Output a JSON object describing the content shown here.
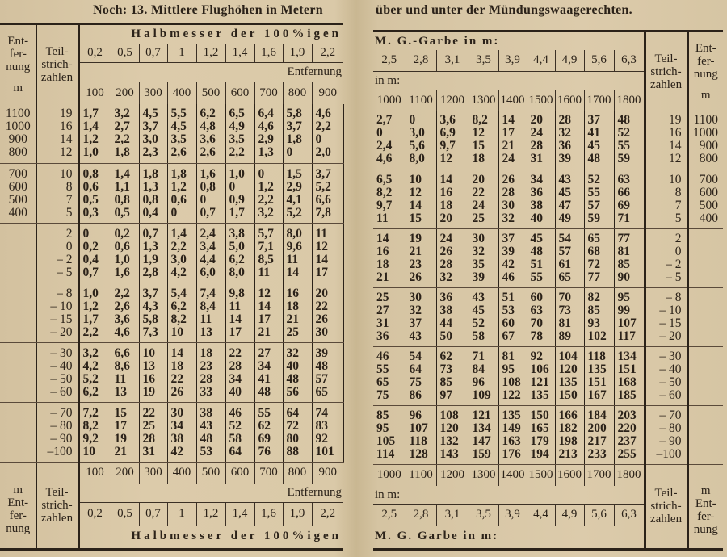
{
  "left": {
    "title": "Noch: 13. Mittlere Flughöhen in Metern",
    "header": {
      "entfernung_label": "Ent-\nfer-\nnung",
      "unit": "m",
      "teil_label": "Teil-\nstrich-\nzahlen",
      "halbmesser_label": "Halbmesser der 100%igen",
      "halbmesser": [
        "0,2",
        "0,5",
        "0,7",
        "1",
        "1,2",
        "1,4",
        "1,6",
        "1,9",
        "2,2"
      ],
      "entfernung_label2": "Entfernung",
      "entfernungen": [
        "100",
        "200",
        "300",
        "400",
        "500",
        "600",
        "700",
        "800",
        "900"
      ]
    },
    "groups": [
      {
        "entfernung": [
          "1100",
          "1000",
          "900",
          "800"
        ],
        "teil": [
          "19",
          "16",
          "14",
          "12"
        ],
        "rows": [
          [
            "1,7",
            "3,2",
            "4,5",
            "5,5",
            "6,2",
            "6,5",
            "6,4",
            "5,8",
            "4,6"
          ],
          [
            "1,4",
            "2,7",
            "3,7",
            "4,5",
            "4,8",
            "4,9",
            "4,6",
            "3,7",
            "2,2"
          ],
          [
            "1,2",
            "2,2",
            "3,0",
            "3,5",
            "3,6",
            "3,5",
            "2,9",
            "1,8",
            "0"
          ],
          [
            "1,0",
            "1,8",
            "2,3",
            "2,6",
            "2,6",
            "2,2",
            "1,3",
            "0",
            "2,0"
          ]
        ]
      },
      {
        "entfernung": [
          "700",
          "600",
          "500",
          "400"
        ],
        "teil": [
          "10",
          "8",
          "7",
          "5"
        ],
        "rows": [
          [
            "0,8",
            "1,4",
            "1,8",
            "1,8",
            "1,6",
            "1,0",
            "0",
            "1,5",
            "3,7"
          ],
          [
            "0,6",
            "1,1",
            "1,3",
            "1,2",
            "0,8",
            "0",
            "1,2",
            "2,9",
            "5,2"
          ],
          [
            "0,5",
            "0,8",
            "0,8",
            "0,6",
            "0",
            "0,9",
            "2,2",
            "4,1",
            "6,6"
          ],
          [
            "0,3",
            "0,5",
            "0,4",
            "0",
            "0,7",
            "1,7",
            "3,2",
            "5,2",
            "7,8"
          ]
        ]
      },
      {
        "entfernung": [
          "",
          "",
          "",
          ""
        ],
        "teil": [
          "2",
          "0",
          "– 2",
          "– 5"
        ],
        "rows": [
          [
            "0",
            "0,2",
            "0,7",
            "1,4",
            "2,4",
            "3,8",
            "5,7",
            "8,0",
            "11"
          ],
          [
            "0,2",
            "0,6",
            "1,3",
            "2,2",
            "3,4",
            "5,0",
            "7,1",
            "9,6",
            "12"
          ],
          [
            "0,4",
            "1,0",
            "1,9",
            "3,0",
            "4,4",
            "6,2",
            "8,5",
            "11",
            "14"
          ],
          [
            "0,7",
            "1,6",
            "2,8",
            "4,2",
            "6,0",
            "8,0",
            "11",
            "14",
            "17"
          ]
        ]
      },
      {
        "entfernung": [
          "",
          "",
          "",
          ""
        ],
        "teil": [
          "– 8",
          "– 10",
          "– 15",
          "– 20"
        ],
        "rows": [
          [
            "1,0",
            "2,2",
            "3,7",
            "5,4",
            "7,4",
            "9,8",
            "12",
            "16",
            "20"
          ],
          [
            "1,2",
            "2,6",
            "4,3",
            "6,2",
            "8,4",
            "11",
            "14",
            "18",
            "22"
          ],
          [
            "1,7",
            "3,6",
            "5,8",
            "8,2",
            "11",
            "14",
            "17",
            "21",
            "26"
          ],
          [
            "2,2",
            "4,6",
            "7,3",
            "10",
            "13",
            "17",
            "21",
            "25",
            "30"
          ]
        ]
      },
      {
        "entfernung": [
          "",
          "",
          "",
          ""
        ],
        "teil": [
          "– 30",
          "– 40",
          "– 50",
          "– 60"
        ],
        "rows": [
          [
            "3,2",
            "6,6",
            "10",
            "14",
            "18",
            "22",
            "27",
            "32",
            "39"
          ],
          [
            "4,2",
            "8,6",
            "13",
            "18",
            "23",
            "28",
            "34",
            "40",
            "48"
          ],
          [
            "5,2",
            "11",
            "16",
            "22",
            "28",
            "34",
            "41",
            "48",
            "57"
          ],
          [
            "6,2",
            "13",
            "19",
            "26",
            "33",
            "40",
            "48",
            "56",
            "65"
          ]
        ]
      },
      {
        "entfernung": [
          "",
          "",
          "",
          ""
        ],
        "teil": [
          "– 70",
          "– 80",
          "– 90",
          "–100"
        ],
        "rows": [
          [
            "7,2",
            "15",
            "22",
            "30",
            "38",
            "46",
            "55",
            "64",
            "74"
          ],
          [
            "8,2",
            "17",
            "25",
            "34",
            "43",
            "52",
            "62",
            "72",
            "83"
          ],
          [
            "9,2",
            "19",
            "28",
            "38",
            "48",
            "58",
            "69",
            "80",
            "92"
          ],
          [
            "10",
            "21",
            "31",
            "42",
            "53",
            "64",
            "76",
            "88",
            "101"
          ]
        ]
      }
    ],
    "footer": {
      "unit": "m",
      "entfernung_label": "Ent-\nfer-\nnung",
      "teil_label": "Teil-\nstrich-\nzahlen",
      "entfernungen": [
        "100",
        "200",
        "300",
        "400",
        "500",
        "600",
        "700",
        "800",
        "900"
      ],
      "entfernung_label2": "Entfernung",
      "halbmesser": [
        "0,2",
        "0,5",
        "0,7",
        "1",
        "1,2",
        "1,4",
        "1,6",
        "1,9",
        "2,2"
      ],
      "halbmesser_label": "Halbmesser der 100%igen"
    }
  },
  "right": {
    "title": "über und unter der Mündungswaagerechten.",
    "header": {
      "garbe_label": "M. G.-Garbe in m:",
      "garbe": [
        "2,5",
        "2,8",
        "3,1",
        "3,5",
        "3,9",
        "4,4",
        "4,9",
        "5,6",
        "6,3"
      ],
      "in_m_label": "in m:",
      "entfernungen": [
        "1000",
        "1100",
        "1200",
        "1300",
        "1400",
        "1500",
        "1600",
        "1700",
        "1800"
      ],
      "teil_label": "Teil-\nstrich-\nzahlen",
      "entfernung_label": "Ent-\nfer-\nnung",
      "unit": "m"
    },
    "groups": [
      {
        "teil": [
          "19",
          "16",
          "14",
          "12"
        ],
        "entfernung": [
          "1100",
          "1000",
          "900",
          "800"
        ],
        "rows": [
          [
            "2,7",
            "0",
            "3,6",
            "8,2",
            "14",
            "20",
            "28",
            "37",
            "48"
          ],
          [
            "0",
            "3,0",
            "6,9",
            "12",
            "17",
            "24",
            "32",
            "41",
            "52"
          ],
          [
            "2,4",
            "5,6",
            "9,7",
            "15",
            "21",
            "28",
            "36",
            "45",
            "55"
          ],
          [
            "4,6",
            "8,0",
            "12",
            "18",
            "24",
            "31",
            "39",
            "48",
            "59"
          ]
        ]
      },
      {
        "teil": [
          "10",
          "8",
          "7",
          "5"
        ],
        "entfernung": [
          "700",
          "600",
          "500",
          "400"
        ],
        "rows": [
          [
            "6,5",
            "10",
            "14",
            "20",
            "26",
            "34",
            "43",
            "52",
            "63"
          ],
          [
            "8,2",
            "12",
            "16",
            "22",
            "28",
            "36",
            "45",
            "55",
            "66"
          ],
          [
            "9,7",
            "14",
            "18",
            "24",
            "30",
            "38",
            "47",
            "57",
            "69"
          ],
          [
            "11",
            "15",
            "20",
            "25",
            "32",
            "40",
            "49",
            "59",
            "71"
          ]
        ]
      },
      {
        "teil": [
          "2",
          "0",
          "– 2",
          "– 5"
        ],
        "entfernung": [
          "",
          "",
          "",
          ""
        ],
        "rows": [
          [
            "14",
            "19",
            "24",
            "30",
            "37",
            "45",
            "54",
            "65",
            "77"
          ],
          [
            "16",
            "21",
            "26",
            "32",
            "39",
            "48",
            "57",
            "68",
            "81"
          ],
          [
            "18",
            "23",
            "28",
            "35",
            "42",
            "51",
            "61",
            "72",
            "85"
          ],
          [
            "21",
            "26",
            "32",
            "39",
            "46",
            "55",
            "65",
            "77",
            "90"
          ]
        ]
      },
      {
        "teil": [
          "– 8",
          "– 10",
          "– 15",
          "– 20"
        ],
        "entfernung": [
          "",
          "",
          "",
          ""
        ],
        "rows": [
          [
            "25",
            "30",
            "36",
            "43",
            "51",
            "60",
            "70",
            "82",
            "95"
          ],
          [
            "27",
            "32",
            "38",
            "45",
            "53",
            "63",
            "73",
            "85",
            "99"
          ],
          [
            "31",
            "37",
            "44",
            "52",
            "60",
            "70",
            "81",
            "93",
            "107"
          ],
          [
            "36",
            "43",
            "50",
            "58",
            "67",
            "78",
            "89",
            "102",
            "117"
          ]
        ]
      },
      {
        "teil": [
          "– 30",
          "– 40",
          "– 50",
          "– 60"
        ],
        "entfernung": [
          "",
          "",
          "",
          ""
        ],
        "rows": [
          [
            "46",
            "54",
            "62",
            "71",
            "81",
            "92",
            "104",
            "118",
            "134"
          ],
          [
            "55",
            "64",
            "73",
            "84",
            "95",
            "106",
            "120",
            "135",
            "151"
          ],
          [
            "65",
            "75",
            "85",
            "96",
            "108",
            "121",
            "135",
            "151",
            "168"
          ],
          [
            "75",
            "86",
            "97",
            "109",
            "122",
            "135",
            "150",
            "167",
            "185"
          ]
        ]
      },
      {
        "teil": [
          "– 70",
          "– 80",
          "– 90",
          "–100"
        ],
        "entfernung": [
          "",
          "",
          "",
          ""
        ],
        "rows": [
          [
            "85",
            "96",
            "108",
            "121",
            "135",
            "150",
            "166",
            "184",
            "203"
          ],
          [
            "95",
            "107",
            "120",
            "134",
            "149",
            "165",
            "182",
            "200",
            "220"
          ],
          [
            "105",
            "118",
            "132",
            "147",
            "163",
            "179",
            "198",
            "217",
            "237"
          ],
          [
            "114",
            "128",
            "143",
            "159",
            "176",
            "194",
            "213",
            "233",
            "255"
          ]
        ]
      }
    ],
    "footer": {
      "entfernungen": [
        "1000",
        "1100",
        "1200",
        "1300",
        "1400",
        "1500",
        "1600",
        "1700",
        "1800"
      ],
      "in_m_label": "in m:",
      "garbe": [
        "2,5",
        "2,8",
        "3,1",
        "3,5",
        "3,9",
        "4,4",
        "4,9",
        "5,6",
        "6,3"
      ],
      "garbe_label": "M. G. Garbe in m:",
      "teil_label": "Teil-\nstrich-\nzahlen",
      "unit": "m",
      "entfernung_label": "Ent-\nfer-\nnung"
    }
  }
}
